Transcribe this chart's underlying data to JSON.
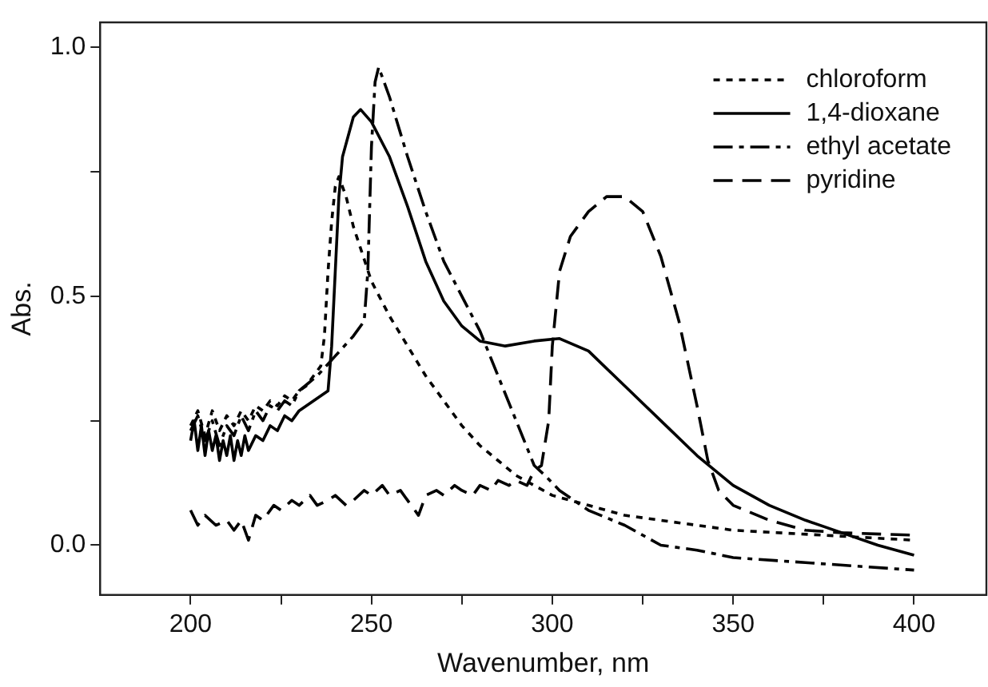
{
  "chart_data": {
    "type": "line",
    "xlabel": "Wavenumber, nm",
    "ylabel": "Abs.",
    "xlim": [
      175,
      420
    ],
    "ylim": [
      -0.1,
      1.05
    ],
    "xticks": [
      200,
      {
        "value": 225,
        "label": null
      },
      250,
      {
        "value": 275,
        "label": null
      },
      300,
      {
        "value": 325,
        "label": null
      },
      350,
      {
        "value": 375,
        "label": null
      },
      400
    ],
    "yticks": [
      {
        "value": 0,
        "label": "0.0"
      },
      {
        "value": 0.25,
        "label": null
      },
      {
        "value": 0.5,
        "label": "0.5"
      },
      {
        "value": 0.75,
        "label": null
      },
      {
        "value": 1,
        "label": "1.0"
      }
    ],
    "grid": false,
    "legend": "top right",
    "marker": "none",
    "series": [
      {
        "name": "chloroform",
        "color": "#000000",
        "line_style": "dotted",
        "x": [
          200,
          202,
          204,
          206,
          208,
          210,
          212,
          214,
          216,
          218,
          220,
          222,
          224,
          226,
          228,
          230,
          232,
          234,
          236,
          237,
          238,
          239,
          240,
          241,
          243,
          245,
          250,
          255,
          260,
          265,
          270,
          275,
          280,
          285,
          290,
          300,
          310,
          320,
          335,
          350,
          375,
          400
        ],
        "values": [
          0.24,
          0.27,
          0.22,
          0.27,
          0.23,
          0.26,
          0.24,
          0.27,
          0.25,
          0.28,
          0.27,
          0.29,
          0.28,
          0.3,
          0.29,
          0.31,
          0.32,
          0.34,
          0.36,
          0.42,
          0.55,
          0.65,
          0.72,
          0.74,
          0.7,
          0.64,
          0.53,
          0.46,
          0.4,
          0.34,
          0.29,
          0.24,
          0.2,
          0.17,
          0.14,
          0.1,
          0.08,
          0.06,
          0.045,
          0.03,
          0.02,
          0.01
        ]
      },
      {
        "name": "1,4-dioxane",
        "color": "#000000",
        "line_style": "solid",
        "x": [
          200,
          201,
          202,
          203,
          204,
          205,
          206,
          207,
          208,
          209,
          210,
          211,
          212,
          213,
          214,
          215,
          216,
          218,
          220,
          222,
          224,
          226,
          228,
          230,
          232,
          234,
          236,
          238,
          239,
          240,
          241,
          242,
          245,
          247,
          250,
          255,
          260,
          265,
          270,
          275,
          280,
          287,
          295,
          302,
          310,
          320,
          330,
          340,
          350,
          360,
          370,
          380,
          390,
          400
        ],
        "values": [
          0.21,
          0.25,
          0.19,
          0.24,
          0.18,
          0.23,
          0.19,
          0.22,
          0.17,
          0.21,
          0.18,
          0.22,
          0.17,
          0.21,
          0.18,
          0.22,
          0.19,
          0.22,
          0.21,
          0.24,
          0.23,
          0.26,
          0.25,
          0.27,
          0.28,
          0.29,
          0.3,
          0.31,
          0.4,
          0.55,
          0.7,
          0.78,
          0.86,
          0.875,
          0.85,
          0.78,
          0.68,
          0.57,
          0.49,
          0.44,
          0.41,
          0.4,
          0.41,
          0.415,
          0.39,
          0.32,
          0.25,
          0.18,
          0.12,
          0.08,
          0.05,
          0.025,
          0.0,
          -0.02
        ]
      },
      {
        "name": "ethyl acetate",
        "color": "#000000",
        "line_style": "dashdot",
        "x": [
          200,
          202,
          204,
          206,
          208,
          210,
          212,
          214,
          216,
          218,
          220,
          222,
          224,
          226,
          228,
          230,
          235,
          240,
          245,
          248,
          249,
          250,
          251,
          252,
          255,
          260,
          265,
          270,
          275,
          280,
          285,
          290,
          295,
          298,
          302,
          310,
          320,
          330,
          340,
          350,
          370,
          400
        ],
        "values": [
          0.23,
          0.26,
          0.21,
          0.25,
          0.2,
          0.24,
          0.22,
          0.26,
          0.23,
          0.27,
          0.25,
          0.28,
          0.27,
          0.29,
          0.28,
          0.31,
          0.34,
          0.38,
          0.42,
          0.45,
          0.55,
          0.8,
          0.93,
          0.96,
          0.9,
          0.78,
          0.67,
          0.57,
          0.5,
          0.43,
          0.34,
          0.25,
          0.16,
          0.14,
          0.11,
          0.07,
          0.04,
          0.0,
          -0.01,
          -0.025,
          -0.035,
          -0.05
        ]
      },
      {
        "name": "pyridine",
        "color": "#000000",
        "line_style": "dashed",
        "x": [
          200,
          202,
          204,
          207,
          210,
          212,
          214,
          216,
          218,
          220,
          223,
          225,
          228,
          230,
          233,
          235,
          238,
          240,
          243,
          245,
          248,
          250,
          253,
          255,
          258,
          260,
          263,
          265,
          268,
          270,
          273,
          275,
          278,
          280,
          283,
          285,
          288,
          290,
          293,
          295,
          297,
          299,
          300,
          302,
          305,
          310,
          315,
          320,
          325,
          330,
          335,
          340,
          343,
          346,
          350,
          360,
          370,
          380,
          400
        ],
        "values": [
          0.07,
          0.04,
          0.06,
          0.04,
          0.05,
          0.03,
          0.05,
          0.01,
          0.06,
          0.05,
          0.08,
          0.07,
          0.09,
          0.08,
          0.1,
          0.08,
          0.09,
          0.1,
          0.08,
          0.09,
          0.11,
          0.1,
          0.12,
          0.1,
          0.11,
          0.09,
          0.06,
          0.1,
          0.11,
          0.1,
          0.12,
          0.11,
          0.1,
          0.12,
          0.11,
          0.13,
          0.12,
          0.13,
          0.12,
          0.15,
          0.16,
          0.25,
          0.4,
          0.55,
          0.62,
          0.67,
          0.7,
          0.7,
          0.67,
          0.58,
          0.45,
          0.28,
          0.17,
          0.11,
          0.08,
          0.05,
          0.03,
          0.025,
          0.02
        ]
      }
    ]
  }
}
